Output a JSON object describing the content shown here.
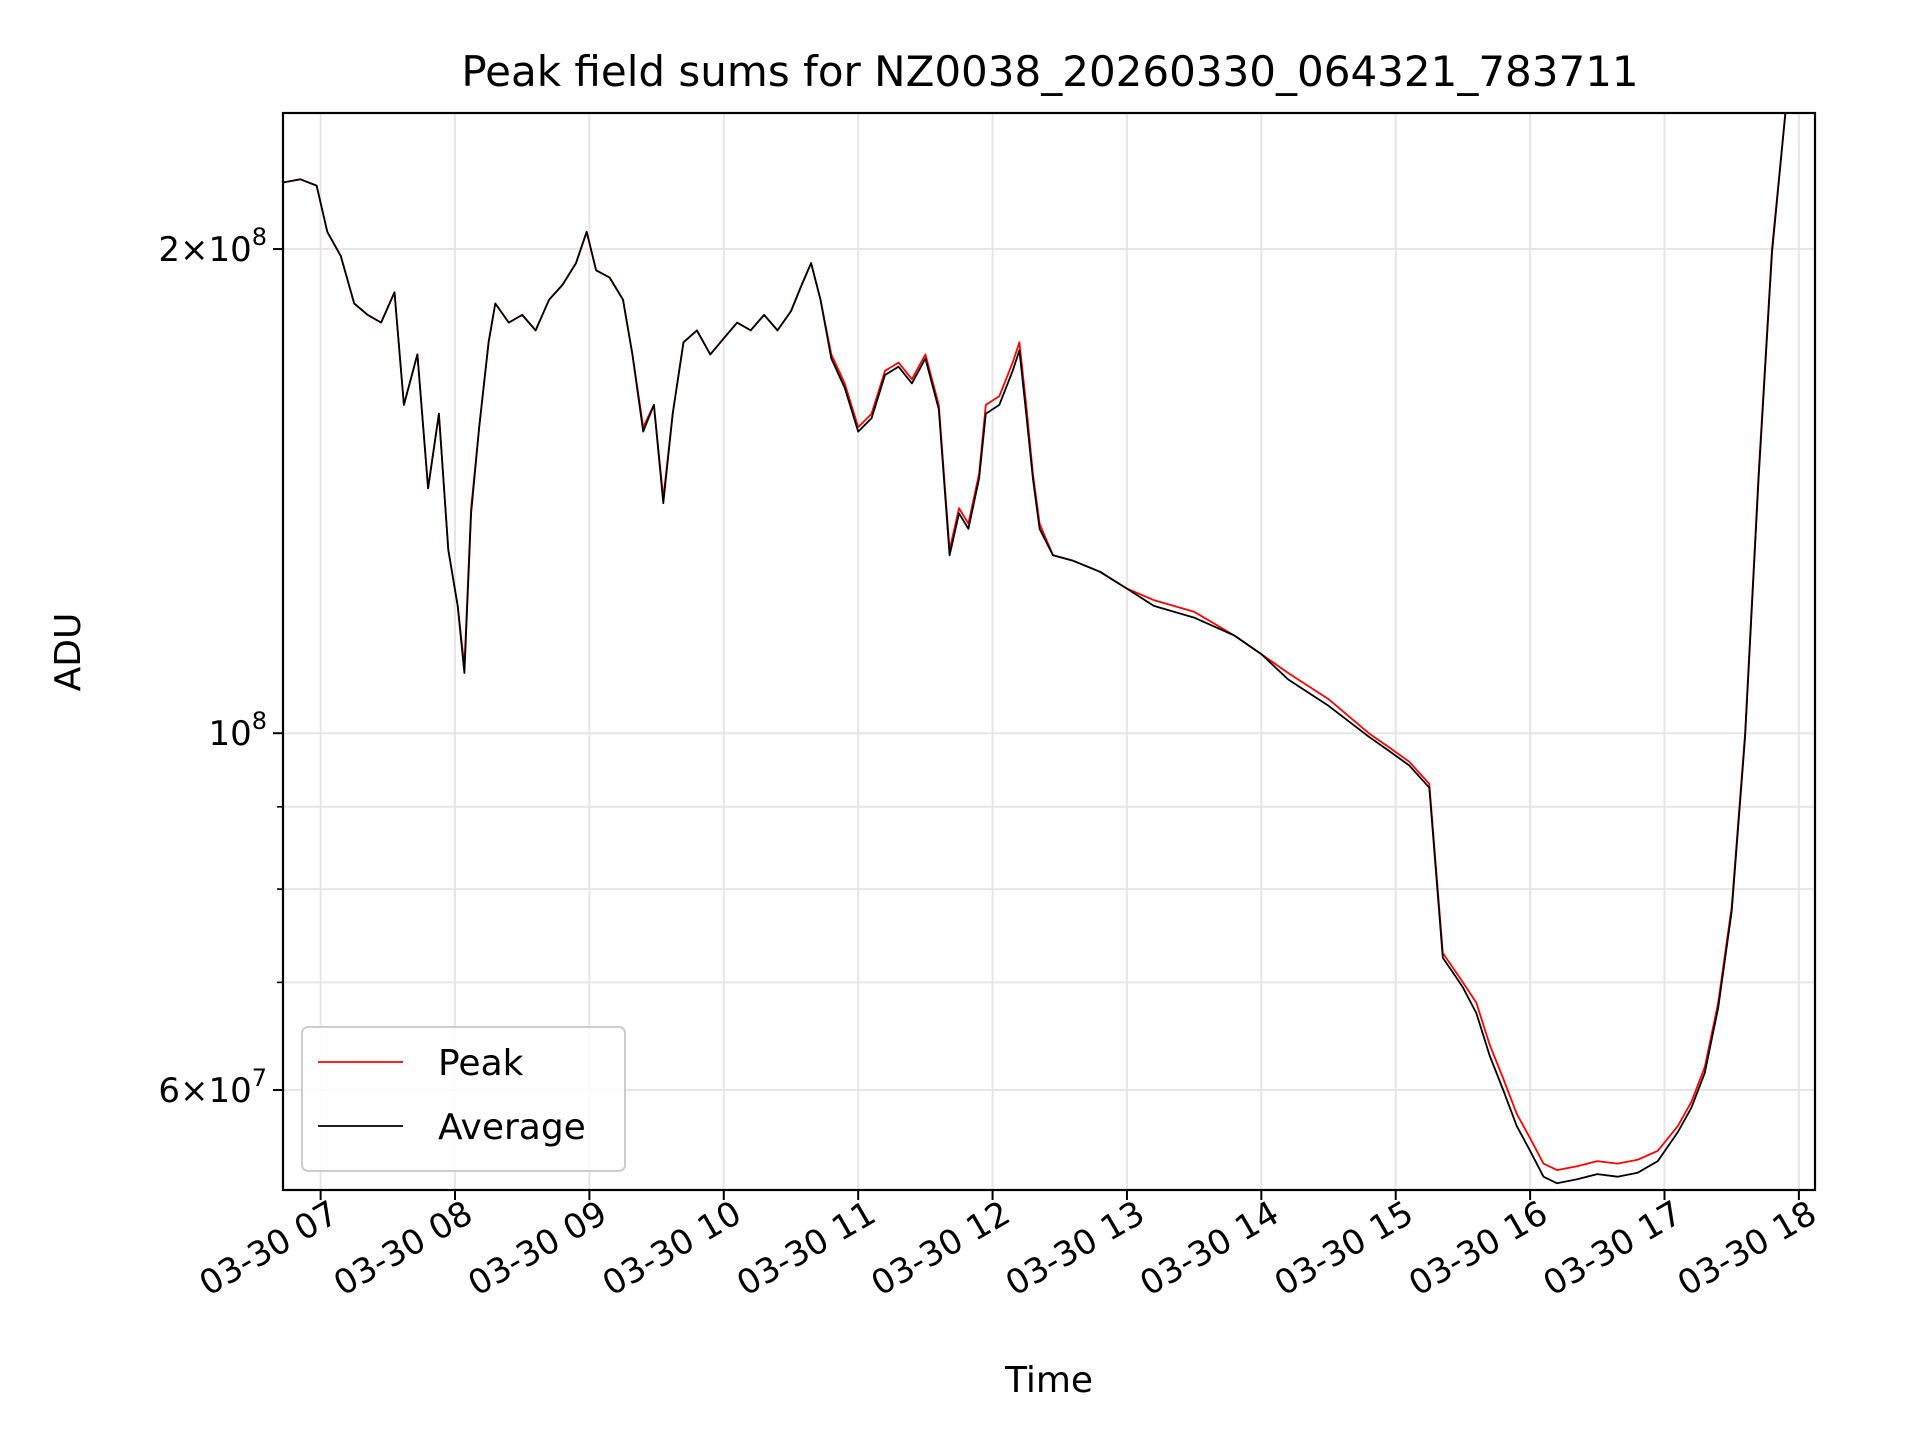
{
  "chart_data": {
    "type": "line",
    "title": "Peak field sums for NZ0038_20260330_064321_783711",
    "xlabel": "Time",
    "ylabel": "ADU",
    "x_unit": "hours (03-30)",
    "xlim": [
      6.72,
      18.12
    ],
    "ylim": [
      52000000,
      243000000
    ],
    "y_scale": "log",
    "grid": true,
    "legend_position": "lower-left",
    "x_ticks": [
      {
        "value": 7,
        "label": "03-30 07"
      },
      {
        "value": 8,
        "label": "03-30 08"
      },
      {
        "value": 9,
        "label": "03-30 09"
      },
      {
        "value": 10,
        "label": "03-30 10"
      },
      {
        "value": 11,
        "label": "03-30 11"
      },
      {
        "value": 12,
        "label": "03-30 12"
      },
      {
        "value": 13,
        "label": "03-30 13"
      },
      {
        "value": 14,
        "label": "03-30 14"
      },
      {
        "value": 15,
        "label": "03-30 15"
      },
      {
        "value": 16,
        "label": "03-30 16"
      },
      {
        "value": 17,
        "label": "03-30 17"
      },
      {
        "value": 18,
        "label": "03-30 18"
      }
    ],
    "y_major_ticks": [
      {
        "value": 200000000,
        "mantissa": "2",
        "exp": "8"
      },
      {
        "value": 100000000,
        "mantissa": "",
        "exp": "8"
      },
      {
        "value": 60000000,
        "mantissa": "6",
        "exp": "7"
      }
    ],
    "y_minor_ticks": [
      60000000,
      70000000,
      80000000,
      90000000,
      200000000
    ],
    "series": [
      {
        "name": "Peak",
        "color": "#ff0000",
        "x": [
          6.72,
          6.85,
          6.97,
          7.05,
          7.15,
          7.25,
          7.35,
          7.45,
          7.55,
          7.62,
          7.72,
          7.8,
          7.88,
          7.95,
          8.02,
          8.07,
          8.12,
          8.18,
          8.25,
          8.3,
          8.4,
          8.5,
          8.6,
          8.7,
          8.8,
          8.9,
          8.98,
          9.05,
          9.15,
          9.25,
          9.32,
          9.4,
          9.48,
          9.55,
          9.62,
          9.7,
          9.8,
          9.9,
          10.0,
          10.1,
          10.2,
          10.3,
          10.4,
          10.5,
          10.58,
          10.65,
          10.72,
          10.8,
          10.9,
          11.0,
          11.1,
          11.2,
          11.3,
          11.4,
          11.5,
          11.6,
          11.68,
          11.75,
          11.82,
          11.9,
          11.95,
          12.05,
          12.15,
          12.2,
          12.25,
          12.3,
          12.35,
          12.45,
          12.6,
          12.8,
          13.0,
          13.2,
          13.5,
          13.8,
          14.0,
          14.2,
          14.5,
          14.8,
          14.95,
          15.1,
          15.25,
          15.35,
          15.45,
          15.5,
          15.6,
          15.7,
          15.8,
          15.9,
          16.0,
          16.1,
          16.2,
          16.35,
          16.5,
          16.65,
          16.8,
          16.95,
          17.1,
          17.2,
          17.3,
          17.4,
          17.5,
          17.6,
          17.7,
          17.8,
          17.9,
          18.0
        ],
        "values": [
          220000000,
          221000000,
          219000000,
          205000000,
          198000000,
          185000000,
          182000000,
          180000000,
          188000000,
          160000000,
          172000000,
          142000000,
          158000000,
          130000000,
          120000000,
          110000000,
          138000000,
          155000000,
          175000000,
          185000000,
          180000000,
          182000000,
          178000000,
          186000000,
          190000000,
          196000000,
          205000000,
          194000000,
          192000000,
          186000000,
          172000000,
          155000000,
          160000000,
          140000000,
          158000000,
          175000000,
          178000000,
          172000000,
          176000000,
          180000000,
          178000000,
          182000000,
          178000000,
          183000000,
          190000000,
          196000000,
          186000000,
          172000000,
          165000000,
          155000000,
          158000000,
          168000000,
          170000000,
          166000000,
          172000000,
          160000000,
          130000000,
          138000000,
          135000000,
          145000000,
          160000000,
          162000000,
          170000000,
          175000000,
          160000000,
          145000000,
          135000000,
          129000000,
          128000000,
          126000000,
          123000000,
          121000000,
          119000000,
          115000000,
          112000000,
          109000000,
          105000000,
          100000000,
          98000000,
          96000000,
          93000000,
          73000000,
          71000000,
          70000000,
          68000000,
          64000000,
          61000000,
          58000000,
          56000000,
          54000000,
          53500000,
          53800000,
          54200000,
          54000000,
          54300000,
          55000000,
          57000000,
          59000000,
          62000000,
          68000000,
          78000000,
          100000000,
          145000000,
          200000000,
          243000000,
          243000000
        ]
      },
      {
        "name": "Average",
        "color": "#000000",
        "x": [
          6.72,
          6.85,
          6.97,
          7.05,
          7.15,
          7.25,
          7.35,
          7.45,
          7.55,
          7.62,
          7.72,
          7.8,
          7.88,
          7.95,
          8.02,
          8.07,
          8.12,
          8.18,
          8.25,
          8.3,
          8.4,
          8.5,
          8.6,
          8.7,
          8.8,
          8.9,
          8.98,
          9.05,
          9.15,
          9.25,
          9.32,
          9.4,
          9.48,
          9.55,
          9.62,
          9.7,
          9.8,
          9.9,
          10.0,
          10.1,
          10.2,
          10.3,
          10.4,
          10.5,
          10.58,
          10.65,
          10.72,
          10.8,
          10.9,
          11.0,
          11.1,
          11.2,
          11.3,
          11.4,
          11.5,
          11.6,
          11.68,
          11.75,
          11.82,
          11.9,
          11.95,
          12.05,
          12.15,
          12.2,
          12.25,
          12.3,
          12.35,
          12.45,
          12.6,
          12.8,
          13.0,
          13.2,
          13.5,
          13.8,
          14.0,
          14.2,
          14.5,
          14.8,
          14.95,
          15.1,
          15.25,
          15.35,
          15.45,
          15.5,
          15.6,
          15.7,
          15.8,
          15.9,
          16.0,
          16.1,
          16.2,
          16.35,
          16.5,
          16.65,
          16.8,
          16.95,
          17.1,
          17.2,
          17.3,
          17.4,
          17.5,
          17.6,
          17.7,
          17.8,
          17.9,
          18.0
        ],
        "values": [
          220000000,
          221000000,
          219000000,
          205000000,
          198000000,
          185000000,
          182000000,
          180000000,
          188000000,
          160000000,
          172000000,
          142000000,
          158000000,
          130000000,
          120000000,
          109000000,
          137000000,
          155000000,
          175000000,
          185000000,
          180000000,
          182000000,
          178000000,
          186000000,
          190000000,
          196000000,
          205000000,
          194000000,
          192000000,
          186000000,
          172000000,
          154000000,
          160000000,
          139000000,
          158000000,
          175000000,
          178000000,
          172000000,
          176000000,
          180000000,
          178000000,
          182000000,
          178000000,
          183000000,
          190000000,
          196000000,
          186000000,
          171000000,
          164000000,
          154000000,
          157000000,
          167000000,
          169000000,
          165000000,
          171000000,
          159000000,
          129000000,
          137000000,
          134000000,
          144000000,
          158000000,
          160000000,
          168000000,
          173000000,
          158000000,
          144000000,
          134000000,
          129000000,
          128000000,
          126000000,
          123000000,
          120000000,
          118000000,
          115000000,
          112000000,
          108000000,
          104000000,
          99500000,
          97500000,
          95500000,
          92500000,
          72500000,
          70500000,
          69500000,
          67000000,
          63000000,
          60000000,
          57000000,
          55000000,
          53000000,
          52500000,
          52800000,
          53200000,
          53000000,
          53300000,
          54200000,
          56500000,
          58500000,
          61500000,
          67500000,
          77500000,
          99500000,
          144000000,
          199000000,
          243000000,
          243000000
        ]
      }
    ]
  }
}
